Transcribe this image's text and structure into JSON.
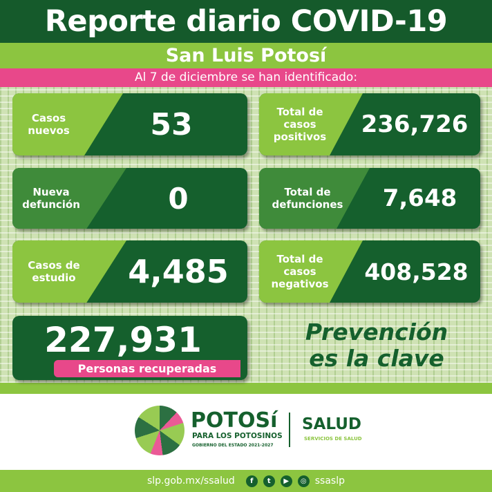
{
  "header": {
    "title": "Reporte diario COVID-19",
    "subtitle": "San Luis Potosí",
    "date_line": "Al 7 de diciembre se han identificado:"
  },
  "cards": [
    {
      "label": "Casos nuevos",
      "value": "53"
    },
    {
      "label": "Total de casos positivos",
      "value": "236,726"
    },
    {
      "label": "Nueva defunción",
      "value": "0"
    },
    {
      "label": "Total de defunciones",
      "value": "7,648"
    },
    {
      "label": "Casos de estudio",
      "value": "4,485"
    },
    {
      "label": "Total de casos negativos",
      "value": "408,528"
    }
  ],
  "recovered": {
    "value": "227,931",
    "label": "Personas recuperadas"
  },
  "slogan": {
    "line1": "Prevención",
    "line2": "es la clave"
  },
  "logos": {
    "potosi": "POTOSí",
    "potosi_tag": "PARA LOS POTOSINOS",
    "gov": "GOBIERNO DEL ESTADO 2021-2027",
    "salud": "SALUD",
    "salud_tag": "SERVICIOS DE SALUD"
  },
  "footer": {
    "url": "slp.gob.mx/ssalud",
    "handle": "ssaslp",
    "icons": [
      "facebook-icon",
      "twitter-icon",
      "youtube-icon",
      "instagram-icon"
    ]
  },
  "colors": {
    "dark_green": "#155a2b",
    "light_green": "#8cc540",
    "pink": "#e8488a"
  }
}
